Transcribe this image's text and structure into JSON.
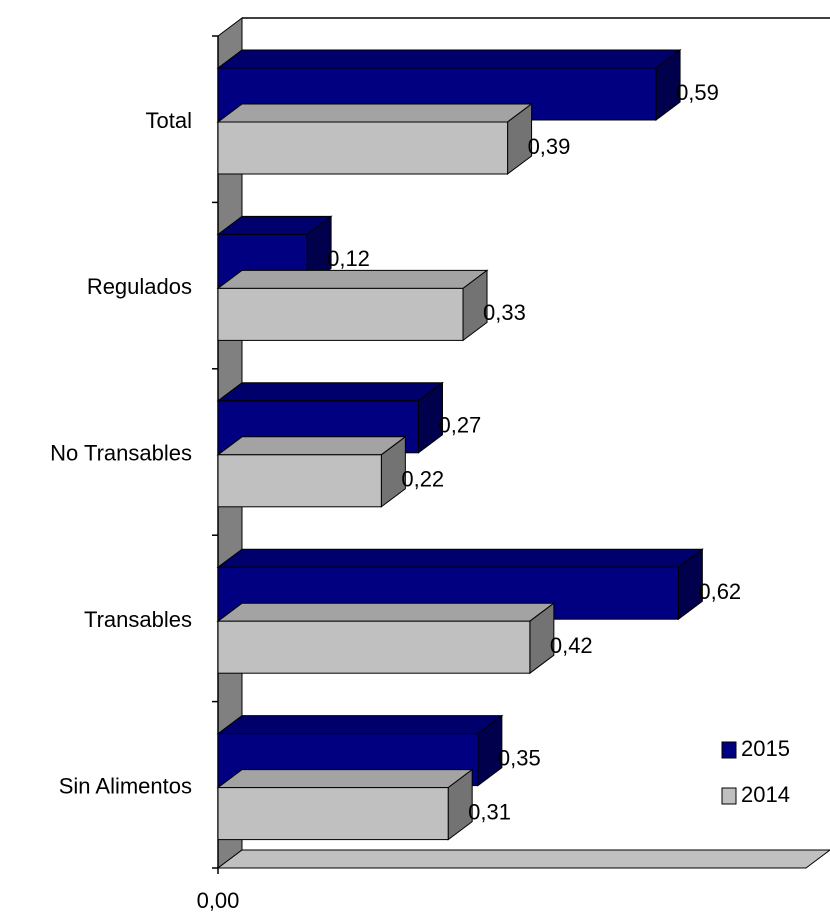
{
  "chart_data": {
    "type": "bar3d_horizontal",
    "categories": [
      "Total",
      "Regulados",
      "No Transables",
      "Transables",
      "Sin Alimentos"
    ],
    "series": [
      {
        "name": "2015",
        "color": "#000080",
        "values": [
          0.59,
          0.12,
          0.27,
          0.62,
          0.35
        ],
        "value_labels": [
          "0,59",
          "0,12",
          "0,27",
          "0,62",
          "0,35"
        ]
      },
      {
        "name": "2014",
        "color": "#c0c0c0",
        "values": [
          0.39,
          0.33,
          0.22,
          0.42,
          0.31
        ],
        "value_labels": [
          "0,39",
          "0,33",
          "0,22",
          "0,42",
          "0,31"
        ]
      }
    ],
    "xlim": [
      0,
      0.8
    ],
    "xticks": [
      {
        "value": 0,
        "label": "0,00"
      }
    ],
    "legend": "lower right"
  }
}
